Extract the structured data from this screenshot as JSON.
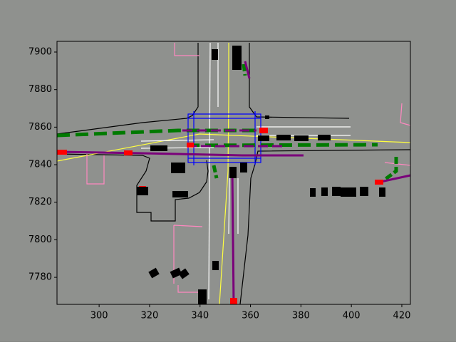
{
  "chart_data": {
    "type": "scene",
    "xlim": [
      283.3,
      423.4
    ],
    "ylim": [
      7765.6,
      7905.7
    ],
    "xticks": [
      300,
      320,
      340,
      360,
      380,
      400,
      420
    ],
    "yticks": [
      7780,
      7800,
      7820,
      7840,
      7860,
      7880,
      7900
    ],
    "background": "#8f918e"
  }
}
